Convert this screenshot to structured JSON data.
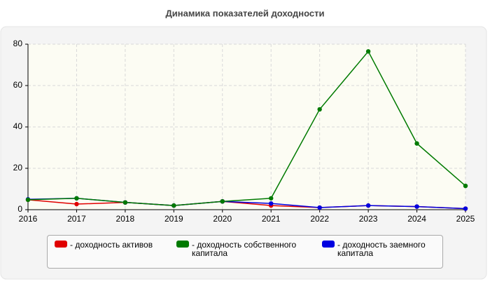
{
  "chart_data": {
    "type": "line",
    "title": "Динамика показателей доходности",
    "x": [
      2016,
      2017,
      2018,
      2019,
      2020,
      2021,
      2022,
      2023,
      2024,
      2025
    ],
    "series": [
      {
        "name": "- доходность активов",
        "color": "#e00000",
        "values": [
          4.8,
          2.7,
          3.5,
          2,
          4,
          2,
          1,
          2,
          1.5,
          0.5
        ]
      },
      {
        "name": "- доходность заемного капитала",
        "color": "#0000e0",
        "values": [
          5,
          5.5,
          3.5,
          2,
          4,
          3,
          1,
          2,
          1.5,
          0.5
        ]
      },
      {
        "name": "- доходность собственного капитала",
        "color": "#007a00",
        "values": [
          4.8,
          5.5,
          3.5,
          2,
          4,
          5.5,
          48.5,
          76.5,
          32,
          11.5
        ]
      }
    ],
    "legend_order": [
      0,
      2,
      1
    ],
    "xlim": [
      2016,
      2025
    ],
    "xticks": [
      2016,
      2017,
      2018,
      2019,
      2020,
      2021,
      2022,
      2023,
      2024,
      2025
    ],
    "ylim": [
      0,
      80
    ],
    "yticks": [
      0,
      20,
      40,
      60,
      80
    ],
    "grid": true
  }
}
